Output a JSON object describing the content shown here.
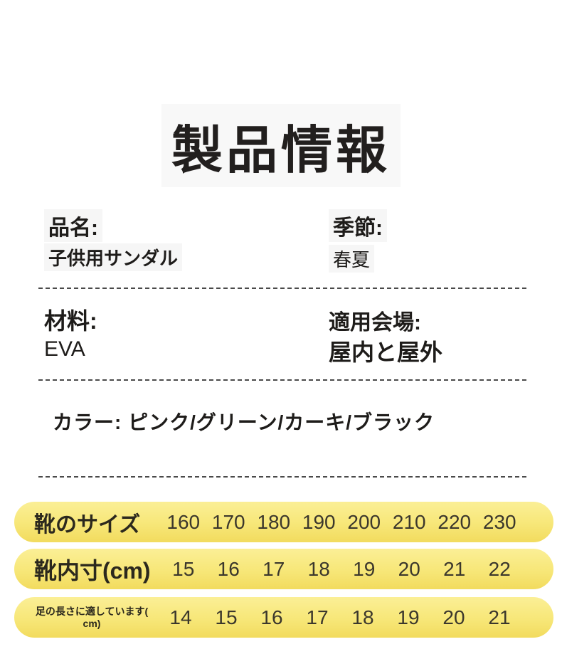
{
  "page": {
    "title": "製品情報"
  },
  "specs": {
    "name": {
      "label": "品名:",
      "value": "子供用サンダル"
    },
    "season": {
      "label": "季節:",
      "value": "春夏"
    },
    "material": {
      "label": "材料:",
      "value": "EVA"
    },
    "venue": {
      "label": "適用会場:",
      "value": "屋内と屋外"
    }
  },
  "color": {
    "label": "カラー:",
    "value": "ピンク/グリーン/カーキ/ブラック"
  },
  "size_table": {
    "rows": [
      {
        "label": "靴のサイズ",
        "values": [
          "160",
          "170",
          "180",
          "190",
          "200",
          "210",
          "220",
          "230"
        ]
      },
      {
        "label": "靴内寸(cm)",
        "values": [
          "15",
          "16",
          "17",
          "18",
          "19",
          "20",
          "21",
          "22"
        ]
      },
      {
        "label_line1": "足の長さに適しています(",
        "label_line2": "cm)",
        "values": [
          "14",
          "15",
          "16",
          "17",
          "18",
          "19",
          "20",
          "21"
        ]
      }
    ]
  },
  "colors": {
    "pill_yellow_top": "#FBEF96",
    "pill_yellow_bottom": "#F2DB5E",
    "divider_gray": "#4A4A4A",
    "text_dark": "#1E1C1A"
  }
}
